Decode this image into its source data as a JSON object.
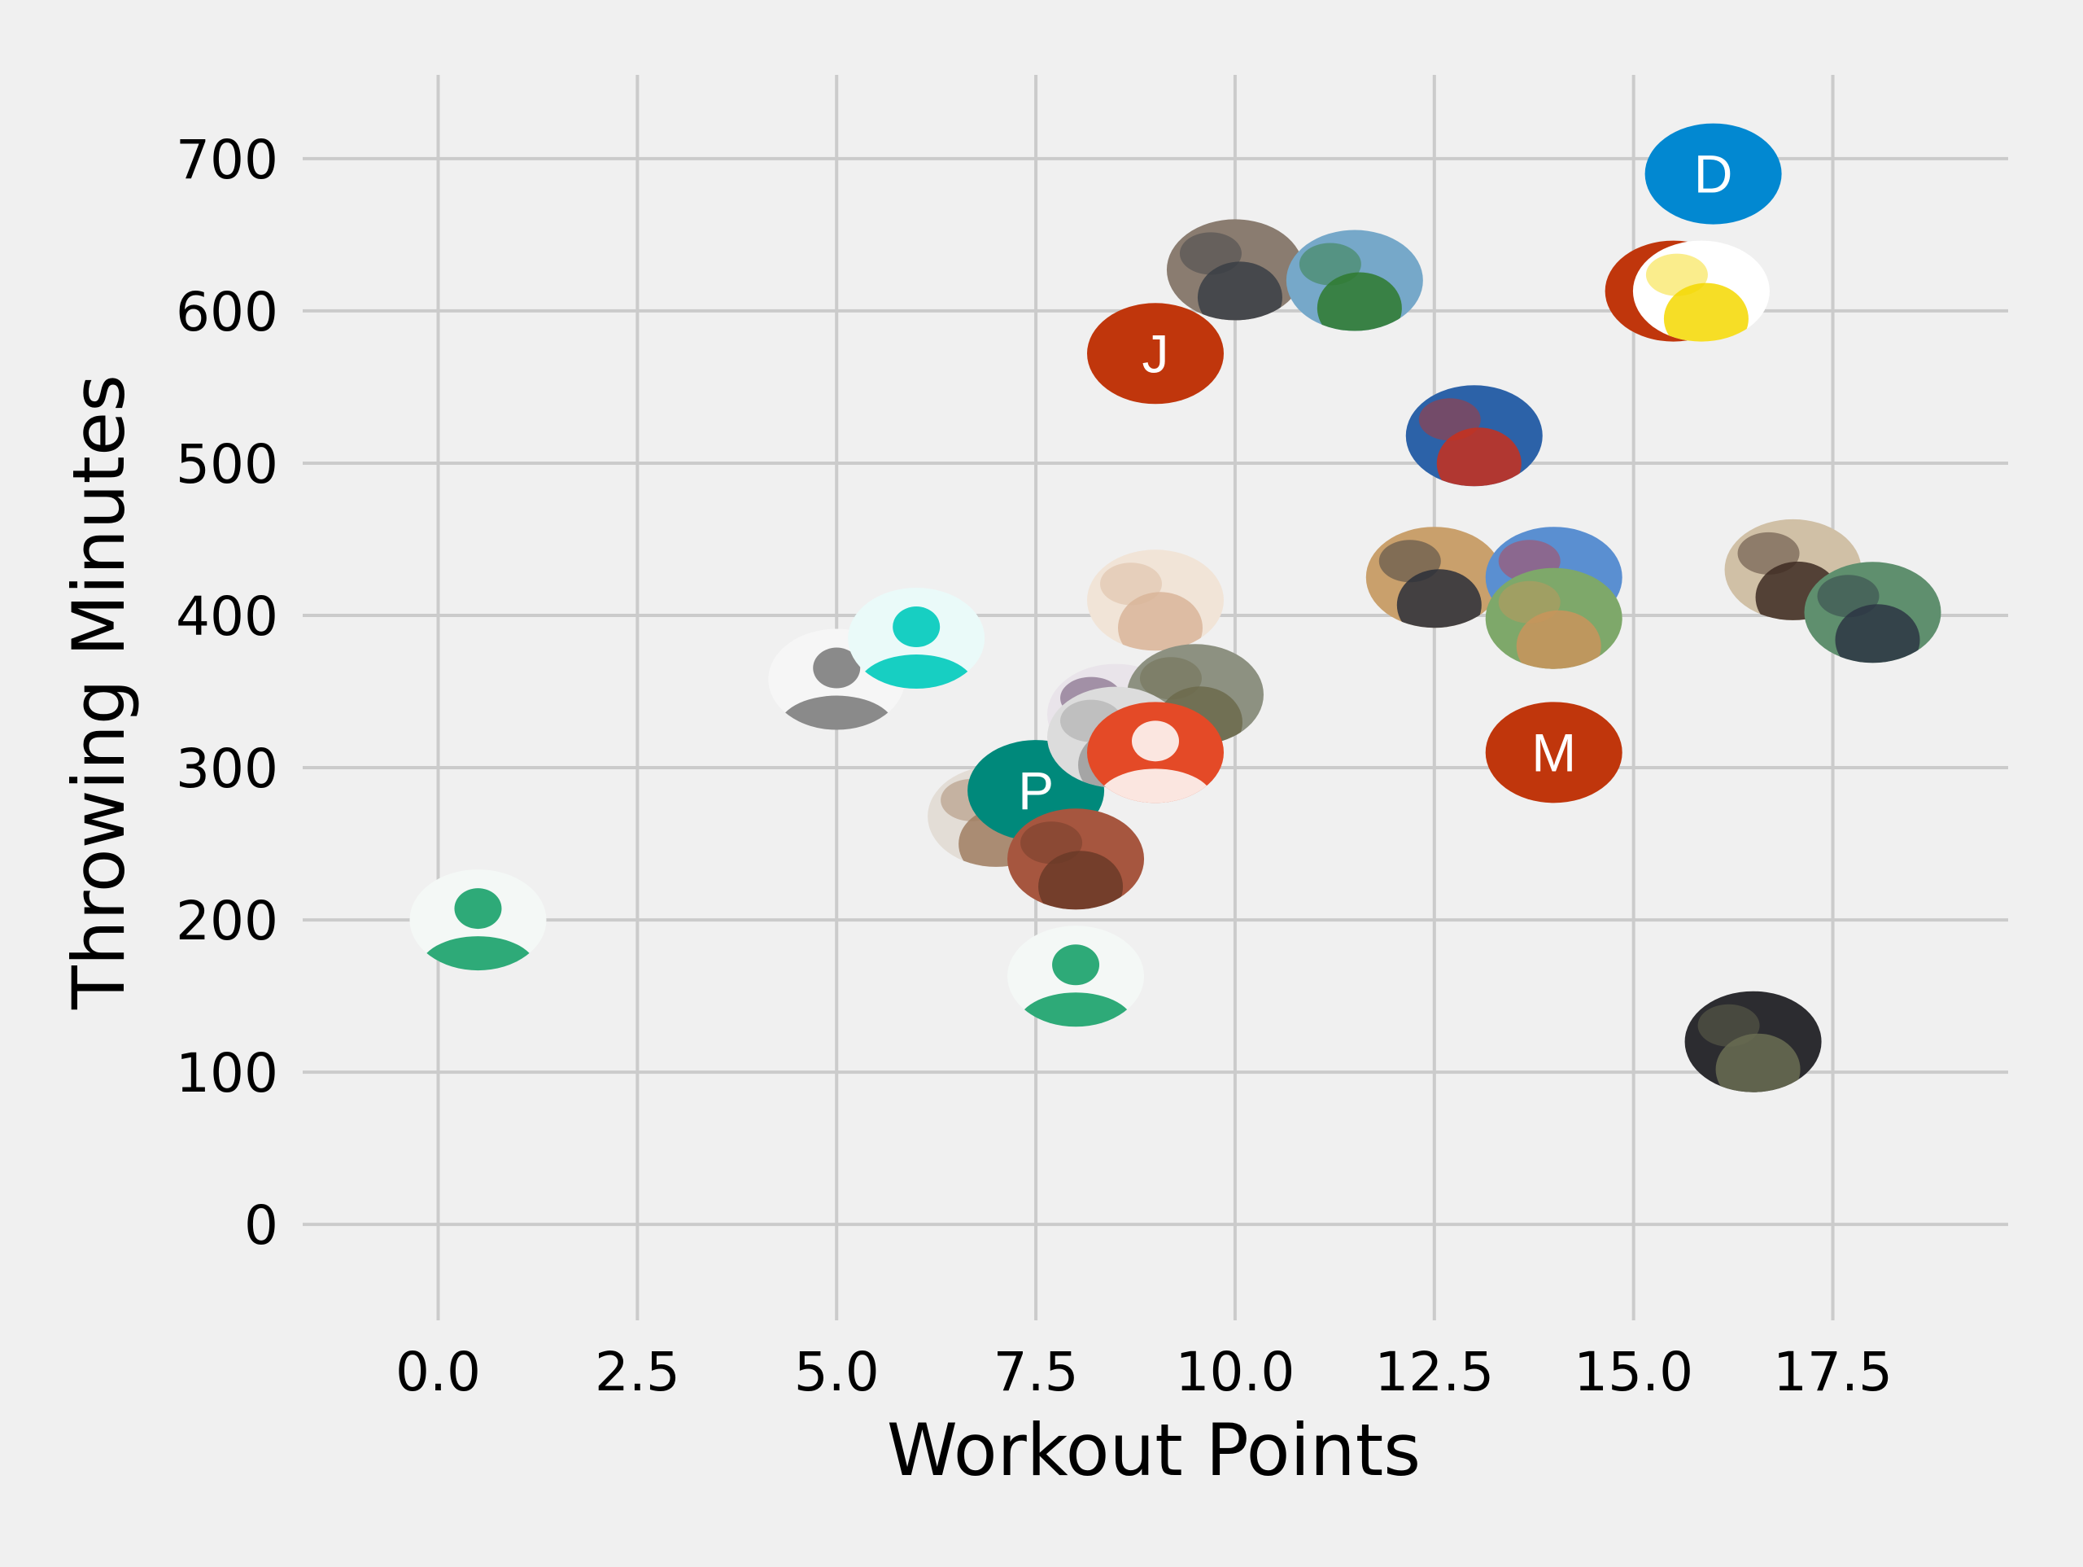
{
  "chart_data": {
    "type": "scatter",
    "title": "",
    "xlabel": "Workout Points",
    "ylabel": "Throwing Minutes",
    "xlim": [
      -1.7,
      19.7
    ],
    "ylim": [
      -63,
      755
    ],
    "xticks": [
      0.0,
      2.5,
      5.0,
      7.5,
      10.0,
      12.5,
      15.0,
      17.5
    ],
    "xtick_labels": [
      "0.0",
      "2.5",
      "5.0",
      "7.5",
      "10.0",
      "12.5",
      "15.0",
      "17.5"
    ],
    "yticks": [
      0,
      100,
      200,
      300,
      400,
      500,
      600,
      700
    ],
    "ytick_labels": [
      "0",
      "100",
      "200",
      "300",
      "400",
      "500",
      "600",
      "700"
    ],
    "grid": true,
    "background": "#f0f0f0",
    "grid_color": "#cbcbcb",
    "marker_style": "circular profile-avatar images",
    "points": [
      {
        "x": 0.5,
        "y": 200,
        "avatar": "default-person",
        "fg": "#2eaa78",
        "bg": "#f4f8f6"
      },
      {
        "x": 5.0,
        "y": 358,
        "avatar": "default-person",
        "fg": "#8a8a8a",
        "bg": "#f6f6f6"
      },
      {
        "x": 6.0,
        "y": 385,
        "avatar": "default-person",
        "fg": "#17cfc2",
        "bg": "#eafaf9"
      },
      {
        "x": 7.0,
        "y": 268,
        "avatar": "photo",
        "fg": "#a07e62",
        "bg": "#e3ddd6"
      },
      {
        "x": 7.5,
        "y": 285,
        "avatar": "letter",
        "letter": "P",
        "bg": "#00897b"
      },
      {
        "x": 8.0,
        "y": 240,
        "avatar": "photo",
        "fg": "#6b3a28",
        "bg": "#a6563f"
      },
      {
        "x": 8.0,
        "y": 163,
        "avatar": "default-person",
        "fg": "#2eaa78",
        "bg": "#f4f8f6"
      },
      {
        "x": 8.5,
        "y": 335,
        "avatar": "photo",
        "fg": "#4b2a55",
        "bg": "#e9e4ea"
      },
      {
        "x": 9.0,
        "y": 410,
        "avatar": "photo",
        "fg": "#d9b59a",
        "bg": "#f1e4d7"
      },
      {
        "x": 9.0,
        "y": 572,
        "avatar": "letter",
        "letter": "J",
        "bg": "#c0360c"
      },
      {
        "x": 9.5,
        "y": 348,
        "avatar": "photo",
        "fg": "#6c6a4c",
        "bg": "#8d9181"
      },
      {
        "x": 8.5,
        "y": 320,
        "avatar": "photo",
        "fg": "#9b9b9b",
        "bg": "#dcdcdc"
      },
      {
        "x": 9.0,
        "y": 310,
        "avatar": "default-person",
        "fg": "#fbe6e0",
        "bg": "#e44a27"
      },
      {
        "x": 10.0,
        "y": 627,
        "avatar": "photo",
        "fg": "#3a3f45",
        "bg": "#8a7c70"
      },
      {
        "x": 11.5,
        "y": 620,
        "avatar": "photo",
        "fg": "#2f7a2e",
        "bg": "#76a8c9"
      },
      {
        "x": 12.5,
        "y": 425,
        "avatar": "photo",
        "fg": "#2b2f3a",
        "bg": "#c9a06c"
      },
      {
        "x": 13.0,
        "y": 518,
        "avatar": "photo",
        "fg": "#c9301c",
        "bg": "#2c62a8"
      },
      {
        "x": 14.0,
        "y": 425,
        "avatar": "photo",
        "fg": "#c83a3e",
        "bg": "#5a8fd1"
      },
      {
        "x": 14.0,
        "y": 398,
        "avatar": "photo",
        "fg": "#c9945c",
        "bg": "#7ea86a"
      },
      {
        "x": 14.0,
        "y": 310,
        "avatar": "letter",
        "letter": "M",
        "bg": "#c0360c"
      },
      {
        "x": 15.5,
        "y": 613,
        "avatar": "letter",
        "letter": "",
        "bg": "#c0360c"
      },
      {
        "x": 15.85,
        "y": 613,
        "avatar": "photo",
        "fg": "#f5d800",
        "bg": "#ffffff"
      },
      {
        "x": 16.0,
        "y": 690,
        "avatar": "letter",
        "letter": "D",
        "bg": "#0288d1"
      },
      {
        "x": 16.5,
        "y": 120,
        "avatar": "photo",
        "fg": "#6a6d52",
        "bg": "#2c2c30"
      },
      {
        "x": 17.0,
        "y": 430,
        "avatar": "photo",
        "fg": "#3d2a22",
        "bg": "#d0c0a6"
      },
      {
        "x": 18.0,
        "y": 402,
        "avatar": "photo",
        "fg": "#2d3644",
        "bg": "#5f8f6e"
      }
    ]
  }
}
